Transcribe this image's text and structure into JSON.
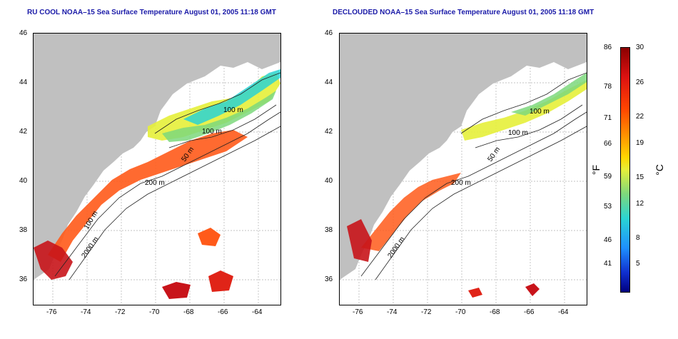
{
  "panels": [
    {
      "title": "RU COOL NOAA–15 Sea Surface Temperature August 01, 2005 11:18 GMT",
      "contours": [
        "100 m",
        "100 m",
        "50 m",
        "200 m",
        "100 m",
        "2000 m"
      ]
    },
    {
      "title": "DECLOUDED NOAA–15 Sea Surface Temperature August 01, 2005 11:18 GMT",
      "contours": [
        "100 m",
        "100 m",
        "50 m",
        "200 m",
        "2000 m"
      ]
    }
  ],
  "axes": {
    "x_ticks": [
      "-76",
      "-74",
      "-72",
      "-70",
      "-68",
      "-66",
      "-64"
    ],
    "y_ticks": [
      "46",
      "44",
      "42",
      "40",
      "38",
      "36"
    ]
  },
  "colorbar": {
    "fahrenheit_ticks": [
      "86",
      "78",
      "71",
      "66",
      "59",
      "53",
      "46",
      "41"
    ],
    "celsius_ticks": [
      "30",
      "26",
      "22",
      "19",
      "15",
      "12",
      "8",
      "5"
    ],
    "unit_f": "°F",
    "unit_c": "°C"
  },
  "colors": {
    "land": "#c0c0c0",
    "title": "#1a1aa8",
    "grid": "#b0b0b0"
  }
}
